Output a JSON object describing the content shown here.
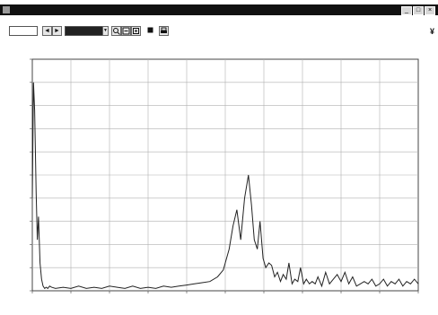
{
  "window": {
    "title": "",
    "buttons": [
      "_",
      "□",
      "×"
    ]
  },
  "menu": {
    "items": [
      "",
      "",
      ""
    ]
  },
  "toolbar": {
    "page_value": "",
    "nav_prev": "◄",
    "nav_next": "►",
    "selector_value": "",
    "icons": [
      "zoom-in-icon",
      "zoom-out-icon",
      "zoom-fit-icon",
      "stop-icon",
      "print-icon"
    ],
    "help_glyph": "¥"
  },
  "colors": {
    "titlebar": "#111111",
    "grid": "#b0b0b0",
    "trace": "#222222",
    "axis": "#444444"
  },
  "chart_data": {
    "type": "line",
    "title": "",
    "xlabel": "",
    "ylabel": "",
    "xlim": [
      0,
      100
    ],
    "ylim": [
      0,
      100
    ],
    "grid": true,
    "series": [
      {
        "x": [
          0,
          0.3,
          0.6,
          1.0,
          1.3,
          1.6,
          2.0,
          2.4,
          2.8,
          3.2,
          3.6,
          4.0,
          4.5,
          5.0,
          6.0,
          8,
          10,
          12,
          14,
          16,
          18,
          20,
          22,
          24,
          26,
          28,
          30,
          32,
          34,
          36,
          38,
          40,
          42,
          44,
          46,
          48,
          49.5,
          51,
          52,
          53,
          54,
          55,
          56,
          56.8,
          57.5,
          58.3,
          59,
          59.8,
          60.5,
          61.3,
          62,
          62.8,
          63.5,
          64.3,
          65,
          65.8,
          66.5,
          67.3,
          68,
          68.8,
          69.5,
          70.3,
          71,
          71.8,
          72.5,
          73.3,
          74,
          75,
          76,
          77,
          78,
          79,
          80,
          81,
          82,
          83,
          84,
          85,
          86,
          87,
          88,
          89,
          90,
          91,
          92,
          93,
          94,
          95,
          96,
          97,
          98,
          99,
          100
        ],
        "y": [
          40,
          90,
          78,
          42,
          22,
          32,
          12,
          5,
          2,
          1,
          1.5,
          1,
          2,
          1.5,
          1,
          1.5,
          1,
          2,
          1,
          1.5,
          1,
          2,
          1.5,
          1,
          2,
          1,
          1.5,
          1,
          2,
          1.5,
          2,
          2.5,
          3,
          3.5,
          4,
          6,
          9,
          18,
          28,
          35,
          22,
          40,
          50,
          37,
          22,
          18,
          30,
          14,
          10,
          12,
          11,
          6,
          8,
          4,
          7,
          5,
          12,
          3,
          5,
          4,
          10,
          3,
          5,
          3,
          4,
          3,
          6,
          2,
          8,
          3,
          5,
          7,
          4,
          8,
          3,
          6,
          2,
          3,
          4,
          3,
          5,
          2,
          3,
          5,
          2,
          4,
          3,
          5,
          2,
          4,
          3,
          5,
          3
        ]
      }
    ]
  }
}
